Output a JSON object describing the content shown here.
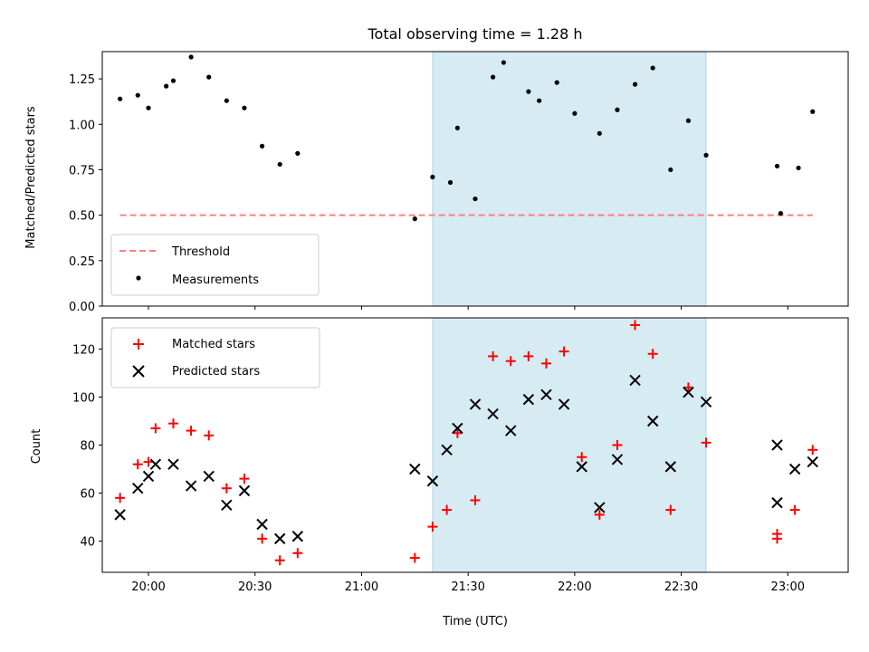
{
  "chart_data": [
    {
      "type": "scatter",
      "title": "Total observing time = 1.28 h",
      "xlabel": "",
      "ylabel": "Matched/Predicted stars",
      "xlim": [
        "19:47",
        "23:17"
      ],
      "ylim": [
        0.0,
        1.4
      ],
      "yticks": [
        "0.00",
        "0.25",
        "0.50",
        "0.75",
        "1.00",
        "1.25"
      ],
      "highlight_span": [
        "21:20",
        "22:37"
      ],
      "highlight_color": "#add8e6",
      "threshold": {
        "name": "Threshold",
        "value": 0.5,
        "x_start": "19:52",
        "x_end": "23:07",
        "color": "#ff7f7f",
        "style": "dashed"
      },
      "series": [
        {
          "name": "Measurements",
          "marker": "dot",
          "color": "#000000",
          "x": [
            "19:52",
            "19:57",
            "20:00",
            "20:05",
            "20:07",
            "20:12",
            "20:17",
            "20:22",
            "20:27",
            "20:32",
            "20:37",
            "20:42",
            "21:15",
            "21:20",
            "21:25",
            "21:27",
            "21:32",
            "21:37",
            "21:40",
            "21:47",
            "21:50",
            "21:55",
            "22:00",
            "22:07",
            "22:12",
            "22:17",
            "22:22",
            "22:27",
            "22:32",
            "22:37",
            "22:57",
            "22:58",
            "23:03",
            "23:07"
          ],
          "values": [
            1.14,
            1.16,
            1.09,
            1.21,
            1.24,
            1.37,
            1.26,
            1.13,
            1.09,
            0.88,
            0.78,
            0.84,
            0.48,
            0.71,
            0.68,
            0.98,
            0.59,
            1.26,
            1.34,
            1.18,
            1.13,
            1.23,
            1.06,
            0.95,
            1.08,
            1.22,
            1.31,
            0.75,
            1.02,
            0.83,
            0.77,
            0.51,
            0.76,
            1.07
          ]
        }
      ],
      "legend_position": "lower-left",
      "grid": false
    },
    {
      "type": "scatter",
      "title": "",
      "xlabel": "Time (UTC)",
      "ylabel": "Count",
      "xlim": [
        "19:47",
        "23:17"
      ],
      "ylim": [
        27,
        133
      ],
      "xticks": [
        "20:00",
        "20:30",
        "21:00",
        "21:30",
        "22:00",
        "22:30",
        "23:00"
      ],
      "yticks": [
        "40",
        "60",
        "80",
        "100",
        "120"
      ],
      "highlight_span": [
        "21:20",
        "22:37"
      ],
      "highlight_color": "#add8e6",
      "series": [
        {
          "name": "Matched stars",
          "marker": "plus",
          "color": "#ff0000",
          "x": [
            "19:52",
            "19:57",
            "20:00",
            "20:02",
            "20:07",
            "20:12",
            "20:17",
            "20:22",
            "20:27",
            "20:32",
            "20:37",
            "20:42",
            "21:15",
            "21:20",
            "21:24",
            "21:27",
            "21:32",
            "21:37",
            "21:42",
            "21:47",
            "21:52",
            "21:57",
            "22:02",
            "22:07",
            "22:12",
            "22:17",
            "22:22",
            "22:27",
            "22:32",
            "22:37",
            "22:57",
            "22:57",
            "23:02",
            "23:07"
          ],
          "values": [
            58,
            72,
            73,
            87,
            89,
            86,
            84,
            62,
            66,
            41,
            32,
            35,
            33,
            46,
            53,
            85,
            57,
            117,
            115,
            117,
            114,
            119,
            75,
            51,
            80,
            130,
            118,
            53,
            104,
            81,
            43,
            41,
            53,
            78
          ]
        },
        {
          "name": "Predicted stars",
          "marker": "x",
          "color": "#000000",
          "x": [
            "19:52",
            "19:57",
            "20:00",
            "20:02",
            "20:07",
            "20:12",
            "20:17",
            "20:22",
            "20:27",
            "20:32",
            "20:37",
            "20:42",
            "21:15",
            "21:20",
            "21:24",
            "21:27",
            "21:32",
            "21:37",
            "21:42",
            "21:47",
            "21:52",
            "21:57",
            "22:02",
            "22:07",
            "22:12",
            "22:17",
            "22:22",
            "22:27",
            "22:32",
            "22:37",
            "22:57",
            "22:57",
            "23:02",
            "23:07"
          ],
          "values": [
            51,
            62,
            67,
            72,
            72,
            63,
            67,
            55,
            61,
            47,
            41,
            42,
            70,
            65,
            78,
            87,
            97,
            93,
            86,
            99,
            101,
            97,
            71,
            54,
            74,
            107,
            90,
            71,
            102,
            98,
            80,
            56,
            70,
            73
          ]
        }
      ],
      "legend_position": "upper-left",
      "grid": false
    }
  ]
}
